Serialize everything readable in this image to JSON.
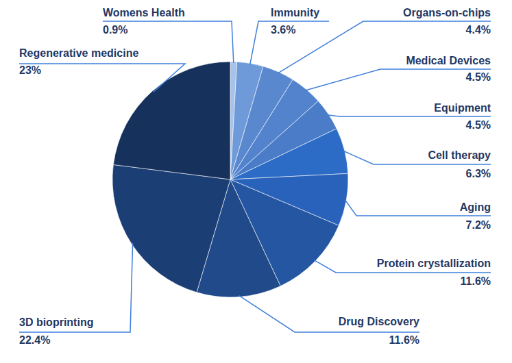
{
  "chart_data": {
    "type": "pie",
    "categories": [
      "Womens Health",
      "Immunity",
      "Organs-on-chips",
      "Medical Devices",
      "Equipment",
      "Cell therapy",
      "Aging",
      "Protein crystallization",
      "Drug Discovery",
      "3D bioprinting",
      "Regenerative medicine"
    ],
    "values": [
      0.9,
      3.6,
      4.4,
      4.5,
      4.5,
      6.3,
      7.2,
      11.6,
      11.6,
      22.4,
      23
    ],
    "value_labels": [
      "0.9%",
      "3.6%",
      "4.4%",
      "4.5%",
      "4.5%",
      "6.3%",
      "7.2%",
      "11.6%",
      "11.6%",
      "22.4%",
      "23%"
    ],
    "colors": [
      "#a6c3eb",
      "#6e9ad9",
      "#5a88cf",
      "#5283cc",
      "#4a7cc8",
      "#2c6cc6",
      "#2862ba",
      "#2556a2",
      "#204a8a",
      "#1b3e74",
      "#16325c"
    ],
    "data_labels": true
  }
}
